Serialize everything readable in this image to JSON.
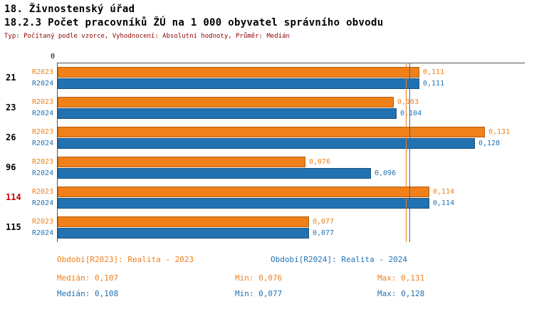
{
  "header": {
    "title": "18. Živnostenský úřad",
    "subtitle": "18.2.3 Počet pracovníků ŽÚ na 1 000 obyvatel správního obvodu",
    "meta": "Typ: Počítaný podle vzorce, Vyhodnocení: Absolutní hodnoty, Průměr: Medián"
  },
  "chart_data": {
    "type": "bar",
    "orientation": "horizontal",
    "title": "18.2.3 Počet pracovníků ŽÚ na 1 000 obyvatel správního obvodu",
    "categories": [
      "21",
      "23",
      "26",
      "96",
      "114",
      "115"
    ],
    "highlighted_category": "114",
    "highlight_color": "#CC0000",
    "series": [
      {
        "name": "R2023",
        "color": "#F08019",
        "border": "#B25B0E",
        "values": [
          0.111,
          0.103,
          0.131,
          0.076,
          0.114,
          0.077
        ],
        "labels": [
          "0,111",
          "0,103",
          "0,131",
          "0,076",
          "0,114",
          "0,077"
        ]
      },
      {
        "name": "R2024",
        "color": "#2272B2",
        "border": "#17527F",
        "values": [
          0.111,
          0.104,
          0.128,
          0.096,
          0.114,
          0.077
        ],
        "labels": [
          "0,111",
          "0,104",
          "0,128",
          "0,096",
          "0,114",
          "0,077"
        ]
      }
    ],
    "xlim": [
      0,
      0.138
    ],
    "axis_zero_label": "0",
    "grid": false,
    "median_lines": [
      {
        "value": 0.107,
        "color": "#F08019"
      },
      {
        "value": 0.108,
        "color": "#2272B2"
      }
    ]
  },
  "legend": {
    "series1": "Období[R2023]: Realita - 2023",
    "series2": "Období[R2024]: Realita - 2024"
  },
  "stats": {
    "r2023": {
      "median": "Medián: 0,107",
      "min": "Min: 0,076",
      "max": "Max: 0,131"
    },
    "r2024": {
      "median": "Medián: 0,108",
      "min": "Min: 0,077",
      "max": "Max: 0,128"
    }
  }
}
